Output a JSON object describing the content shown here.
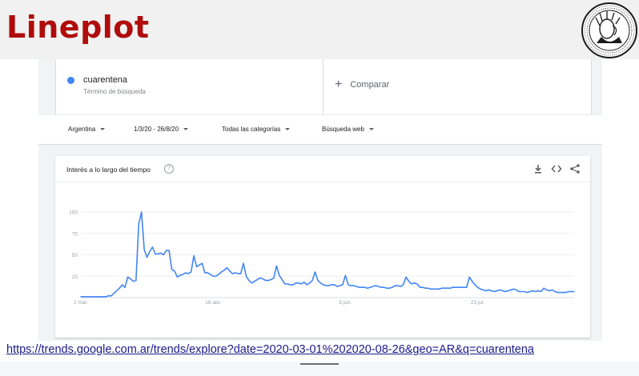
{
  "slide": {
    "title": "Lineplot",
    "link": "https://trends.google.com.ar/trends/explore?date=2020-03-01%202020-08-26&geo=AR&q=cuarentena"
  },
  "logo": {
    "name": "university-seal"
  },
  "search_term": {
    "name": "cuarentena",
    "subtitle": "Término de búsqueda",
    "color": "#4285f4",
    "compare_label": "Comparar"
  },
  "filters": {
    "region": "Argentina",
    "date_range": "1/3/20 - 26/8/20",
    "category": "Todas las categorías",
    "search_type": "Búsqueda web"
  },
  "chart_card": {
    "title": "Interés a lo largo del tiempo",
    "help_symbol": "?",
    "actions": [
      "download-icon",
      "embed-icon",
      "share-icon"
    ]
  },
  "chart_data": {
    "type": "line",
    "title": "Interés a lo largo del tiempo",
    "xlabel": "",
    "ylabel": "",
    "ylim": [
      0,
      100
    ],
    "yticks": [
      100,
      75,
      50,
      25
    ],
    "xticks": [
      {
        "index": 0,
        "label": "1 mar."
      },
      {
        "index": 48,
        "label": "18 abr."
      },
      {
        "index": 96,
        "label": "5 jun."
      },
      {
        "index": 144,
        "label": "23 jul."
      }
    ],
    "series": [
      {
        "name": "cuarentena",
        "color": "#4285f4",
        "values": [
          1,
          1,
          1,
          1,
          1,
          1,
          1,
          1,
          1,
          1,
          2,
          2,
          5,
          8,
          11,
          15,
          12,
          24,
          22,
          19,
          20,
          86,
          100,
          56,
          47,
          54,
          59,
          51,
          51,
          52,
          50,
          55,
          55,
          33,
          31,
          24,
          26,
          27,
          29,
          28,
          30,
          49,
          36,
          38,
          40,
          29,
          29,
          27,
          25,
          25,
          27,
          30,
          32,
          35,
          31,
          28,
          29,
          28,
          28,
          40,
          25,
          20,
          17,
          19,
          21,
          23,
          22,
          20,
          20,
          21,
          23,
          37,
          26,
          21,
          16,
          16,
          15,
          15,
          17,
          17,
          16,
          18,
          15,
          17,
          20,
          30,
          20,
          17,
          15,
          14,
          14,
          15,
          15,
          13,
          14,
          15,
          26,
          15,
          14,
          14,
          13,
          12,
          12,
          12,
          11,
          12,
          13,
          14,
          13,
          12,
          12,
          11,
          11,
          12,
          14,
          14,
          13,
          15,
          24,
          19,
          16,
          17,
          16,
          12,
          12,
          11,
          11,
          10,
          10,
          10,
          10,
          11,
          11,
          11,
          11,
          12,
          12,
          12,
          12,
          12,
          12,
          24,
          19,
          15,
          12,
          10,
          9,
          8,
          9,
          8,
          7,
          8,
          9,
          8,
          7,
          8,
          9,
          10,
          9,
          7,
          7,
          7,
          6,
          7,
          8,
          7,
          8,
          7,
          11,
          9,
          8,
          9,
          7,
          6,
          6,
          6,
          6,
          7,
          7,
          7
        ]
      }
    ]
  }
}
